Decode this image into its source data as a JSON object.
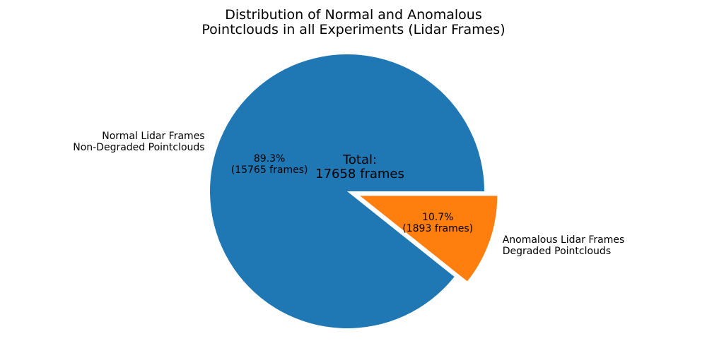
{
  "chart_data": {
    "type": "pie",
    "title": "Distribution of Normal and Anomalous\nPointclouds in all Experiments (Lidar Frames)",
    "total": 17658,
    "total_annotation": "Total:\n17658 frames",
    "startangle": 0,
    "counterclock": true,
    "pctdistance": 0.6,
    "labeldistance": 1.1,
    "background": "#ffffff",
    "text_color": "#000000",
    "slices": [
      {
        "name": "normal",
        "label": "Normal Lidar Frames\nNon-Degraded Pointclouds",
        "value": 15765,
        "percent": 89.3,
        "autopct": "89.3%\n(15765 frames)",
        "color": "#1f77b4",
        "explode": 0
      },
      {
        "name": "anomalous",
        "label": "Anomalous Lidar Frames\nDegraded Pointclouds",
        "value": 1893,
        "percent": 10.7,
        "autopct": "10.7%\n(1893 frames)",
        "color": "#ff7f0e",
        "explode": 0.1
      }
    ]
  }
}
